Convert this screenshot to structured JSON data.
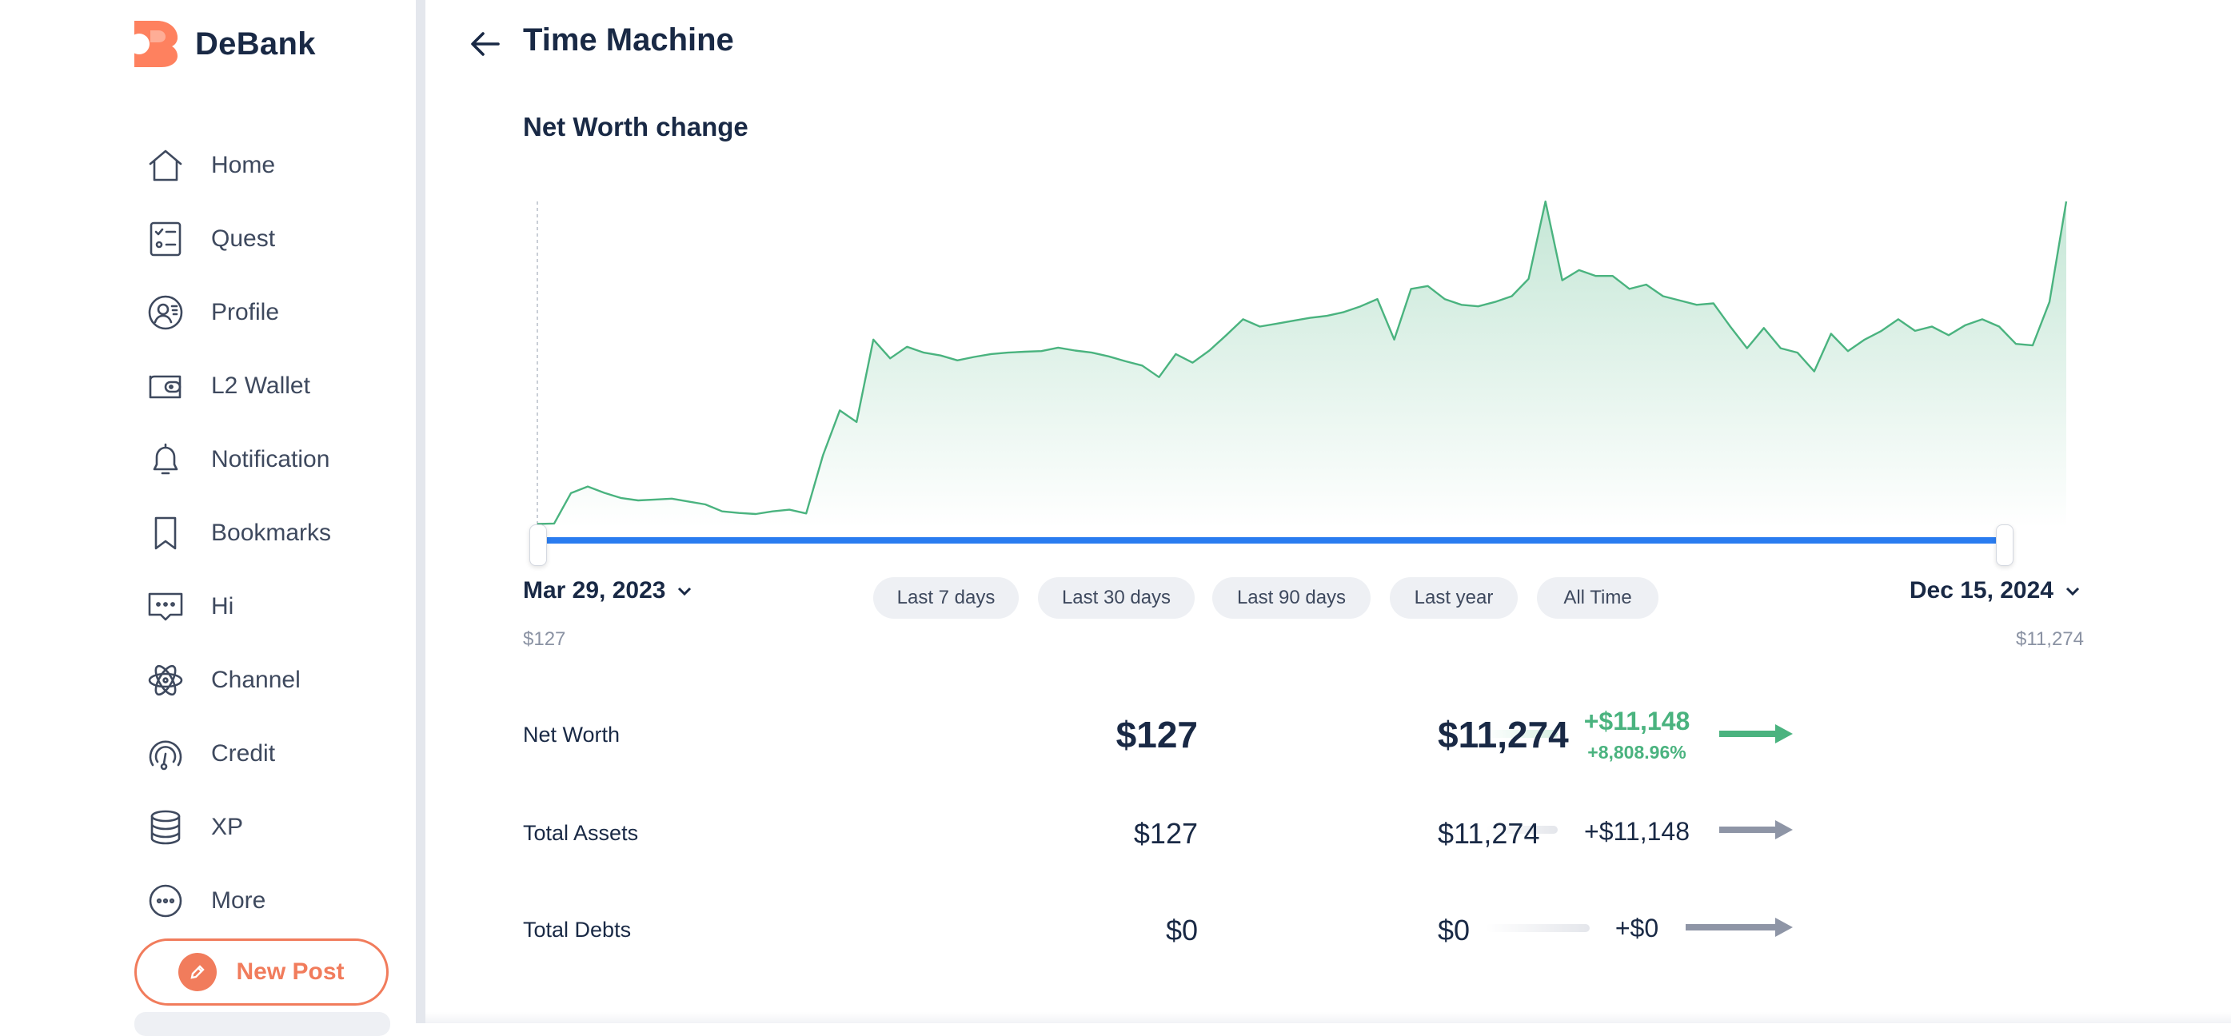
{
  "app": {
    "name": "DeBank"
  },
  "sidebar": {
    "items": [
      {
        "label": "Home",
        "icon": "home-icon"
      },
      {
        "label": "Quest",
        "icon": "checklist-icon"
      },
      {
        "label": "Profile",
        "icon": "profile-icon"
      },
      {
        "label": "L2 Wallet",
        "icon": "wallet-icon"
      },
      {
        "label": "Notification",
        "icon": "bell-icon"
      },
      {
        "label": "Bookmarks",
        "icon": "bookmark-icon"
      },
      {
        "label": "Hi",
        "icon": "chat-icon"
      },
      {
        "label": "Channel",
        "icon": "atom-icon"
      },
      {
        "label": "Credit",
        "icon": "gauge-icon"
      },
      {
        "label": "XP",
        "icon": "coins-icon"
      },
      {
        "label": "More",
        "icon": "more-icon"
      }
    ],
    "new_post_label": "New Post"
  },
  "header": {
    "title": "Time Machine"
  },
  "networth_chart": {
    "title": "Net Worth change",
    "start_date": "Mar 29, 2023",
    "start_value": "$127",
    "end_date": "Dec 15, 2024",
    "end_value": "$11,274",
    "presets": [
      "Last 7 days",
      "Last 30 days",
      "Last 90 days",
      "Last year",
      "All Time"
    ]
  },
  "chart_data": {
    "type": "area",
    "x_range": [
      "Mar 29, 2023",
      "Dec 15, 2024"
    ],
    "series": [
      {
        "values": [
          127,
          140,
          1190,
          1420,
          1200,
          1020,
          940,
          970,
          1000,
          900,
          800,
          560,
          505,
          470,
          560,
          620,
          490,
          2500,
          4050,
          3650,
          6500,
          5850,
          6250,
          6050,
          5950,
          5780,
          5900,
          6000,
          6050,
          6080,
          6100,
          6220,
          6120,
          6050,
          5920,
          5750,
          5600,
          5200,
          6000,
          5700,
          6120,
          6650,
          7200,
          6950,
          7050,
          7150,
          7250,
          7320,
          7450,
          7650,
          7900,
          6500,
          8250,
          8350,
          7900,
          7700,
          7650,
          7800,
          8000,
          8600,
          11274,
          8550,
          8900,
          8700,
          8700,
          8250,
          8400,
          8000,
          7850,
          7700,
          7750,
          6950,
          6200,
          6900,
          6200,
          6050,
          5400,
          6700,
          6100,
          6500,
          6800,
          7200,
          6800,
          6950,
          6650,
          7000,
          7200,
          6950,
          6350,
          6300,
          7800,
          11274
        ]
      }
    ],
    "color": "#4ab37f"
  },
  "summary": {
    "net_worth": {
      "label": "Net Worth",
      "from": "$127",
      "change": "+$11,148",
      "change_pct": "+8,808.96%",
      "to": "$11,274"
    },
    "total_assets": {
      "label": "Total Assets",
      "from": "$127",
      "change": "+$11,148",
      "to": "$11,274"
    },
    "total_debts": {
      "label": "Total Debts",
      "from": "$0",
      "change": "+$0",
      "to": "$0"
    }
  }
}
